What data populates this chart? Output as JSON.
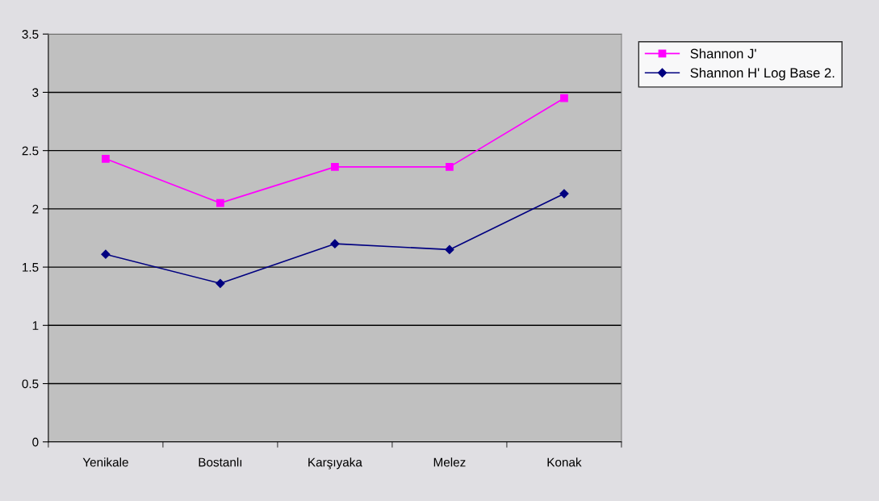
{
  "chart_data": {
    "type": "line",
    "categories": [
      "Yenikale",
      "Bostanlı",
      "Karşıyaka",
      "Melez",
      "Konak"
    ],
    "series": [
      {
        "name": "Shannon J'",
        "color": "#ff00ff",
        "marker": "square",
        "values": [
          2.43,
          2.05,
          2.36,
          2.36,
          2.95
        ]
      },
      {
        "name": "Shannon H' Log Base 2.",
        "color": "#000080",
        "marker": "diamond",
        "values": [
          1.61,
          1.36,
          1.7,
          1.65,
          2.13
        ]
      }
    ],
    "ylim": [
      0,
      3.5
    ],
    "yticks": [
      0,
      0.5,
      1,
      1.5,
      2,
      2.5,
      3,
      3.5
    ],
    "grid": "y",
    "legend": "right",
    "line_style": "solid"
  }
}
